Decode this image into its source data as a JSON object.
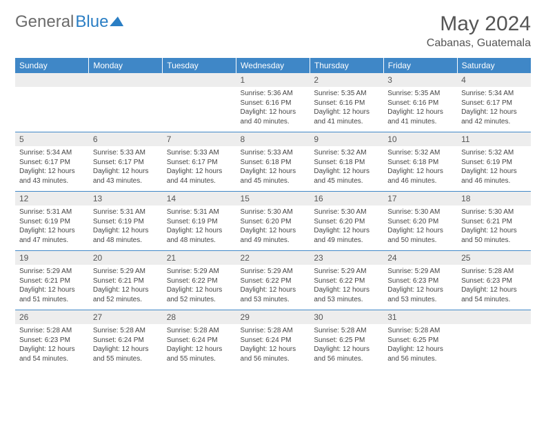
{
  "brand": {
    "part1": "General",
    "part2": "Blue"
  },
  "title": "May 2024",
  "location": "Cabanas, Guatemala",
  "colors": {
    "header_bg": "#3f87c7",
    "header_text": "#ffffff",
    "daynum_bg": "#ededed",
    "daynum_text": "#555555",
    "body_text": "#444444",
    "rule": "#3f87c7",
    "brand_gray": "#6b6b6b",
    "brand_blue": "#2a7ec4"
  },
  "daysOfWeek": [
    "Sunday",
    "Monday",
    "Tuesday",
    "Wednesday",
    "Thursday",
    "Friday",
    "Saturday"
  ],
  "weeks": [
    [
      null,
      null,
      null,
      {
        "n": "1",
        "sr": "5:36 AM",
        "ss": "6:16 PM",
        "dl": "12 hours and 40 minutes."
      },
      {
        "n": "2",
        "sr": "5:35 AM",
        "ss": "6:16 PM",
        "dl": "12 hours and 41 minutes."
      },
      {
        "n": "3",
        "sr": "5:35 AM",
        "ss": "6:16 PM",
        "dl": "12 hours and 41 minutes."
      },
      {
        "n": "4",
        "sr": "5:34 AM",
        "ss": "6:17 PM",
        "dl": "12 hours and 42 minutes."
      }
    ],
    [
      {
        "n": "5",
        "sr": "5:34 AM",
        "ss": "6:17 PM",
        "dl": "12 hours and 43 minutes."
      },
      {
        "n": "6",
        "sr": "5:33 AM",
        "ss": "6:17 PM",
        "dl": "12 hours and 43 minutes."
      },
      {
        "n": "7",
        "sr": "5:33 AM",
        "ss": "6:17 PM",
        "dl": "12 hours and 44 minutes."
      },
      {
        "n": "8",
        "sr": "5:33 AM",
        "ss": "6:18 PM",
        "dl": "12 hours and 45 minutes."
      },
      {
        "n": "9",
        "sr": "5:32 AM",
        "ss": "6:18 PM",
        "dl": "12 hours and 45 minutes."
      },
      {
        "n": "10",
        "sr": "5:32 AM",
        "ss": "6:18 PM",
        "dl": "12 hours and 46 minutes."
      },
      {
        "n": "11",
        "sr": "5:32 AM",
        "ss": "6:19 PM",
        "dl": "12 hours and 46 minutes."
      }
    ],
    [
      {
        "n": "12",
        "sr": "5:31 AM",
        "ss": "6:19 PM",
        "dl": "12 hours and 47 minutes."
      },
      {
        "n": "13",
        "sr": "5:31 AM",
        "ss": "6:19 PM",
        "dl": "12 hours and 48 minutes."
      },
      {
        "n": "14",
        "sr": "5:31 AM",
        "ss": "6:19 PM",
        "dl": "12 hours and 48 minutes."
      },
      {
        "n": "15",
        "sr": "5:30 AM",
        "ss": "6:20 PM",
        "dl": "12 hours and 49 minutes."
      },
      {
        "n": "16",
        "sr": "5:30 AM",
        "ss": "6:20 PM",
        "dl": "12 hours and 49 minutes."
      },
      {
        "n": "17",
        "sr": "5:30 AM",
        "ss": "6:20 PM",
        "dl": "12 hours and 50 minutes."
      },
      {
        "n": "18",
        "sr": "5:30 AM",
        "ss": "6:21 PM",
        "dl": "12 hours and 50 minutes."
      }
    ],
    [
      {
        "n": "19",
        "sr": "5:29 AM",
        "ss": "6:21 PM",
        "dl": "12 hours and 51 minutes."
      },
      {
        "n": "20",
        "sr": "5:29 AM",
        "ss": "6:21 PM",
        "dl": "12 hours and 52 minutes."
      },
      {
        "n": "21",
        "sr": "5:29 AM",
        "ss": "6:22 PM",
        "dl": "12 hours and 52 minutes."
      },
      {
        "n": "22",
        "sr": "5:29 AM",
        "ss": "6:22 PM",
        "dl": "12 hours and 53 minutes."
      },
      {
        "n": "23",
        "sr": "5:29 AM",
        "ss": "6:22 PM",
        "dl": "12 hours and 53 minutes."
      },
      {
        "n": "24",
        "sr": "5:29 AM",
        "ss": "6:23 PM",
        "dl": "12 hours and 53 minutes."
      },
      {
        "n": "25",
        "sr": "5:28 AM",
        "ss": "6:23 PM",
        "dl": "12 hours and 54 minutes."
      }
    ],
    [
      {
        "n": "26",
        "sr": "5:28 AM",
        "ss": "6:23 PM",
        "dl": "12 hours and 54 minutes."
      },
      {
        "n": "27",
        "sr": "5:28 AM",
        "ss": "6:24 PM",
        "dl": "12 hours and 55 minutes."
      },
      {
        "n": "28",
        "sr": "5:28 AM",
        "ss": "6:24 PM",
        "dl": "12 hours and 55 minutes."
      },
      {
        "n": "29",
        "sr": "5:28 AM",
        "ss": "6:24 PM",
        "dl": "12 hours and 56 minutes."
      },
      {
        "n": "30",
        "sr": "5:28 AM",
        "ss": "6:25 PM",
        "dl": "12 hours and 56 minutes."
      },
      {
        "n": "31",
        "sr": "5:28 AM",
        "ss": "6:25 PM",
        "dl": "12 hours and 56 minutes."
      },
      null
    ]
  ],
  "labels": {
    "sunrise": "Sunrise:",
    "sunset": "Sunset:",
    "daylight": "Daylight:"
  }
}
